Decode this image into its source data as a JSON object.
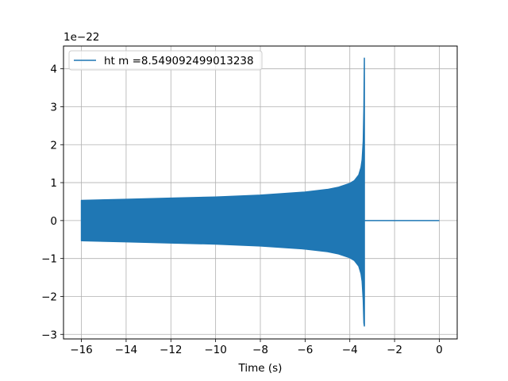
{
  "chart_data": {
    "type": "line",
    "title": "",
    "xlabel": "Time (s)",
    "ylabel": "",
    "y_offset_text": "1e−22",
    "y_scale_factor": 1e-22,
    "xlim": [
      -16.8,
      0.8
    ],
    "ylim": [
      -3.12,
      4.6
    ],
    "x_ticks": [
      -16,
      -14,
      -12,
      -10,
      -8,
      -6,
      -4,
      -2,
      0
    ],
    "x_tick_labels": [
      "−16",
      "−14",
      "−12",
      "−10",
      "−8",
      "−6",
      "−4",
      "−2",
      "0"
    ],
    "y_ticks": [
      -3,
      -2,
      -1,
      0,
      1,
      2,
      3,
      4
    ],
    "y_tick_labels": [
      "−3",
      "−2",
      "−1",
      "0",
      "1",
      "2",
      "3",
      "4"
    ],
    "grid": true,
    "legend_position": "upper-left",
    "series": [
      {
        "name": "ht m =8.549092499013238",
        "color": "#1f77b4",
        "envelope": {
          "x": [
            -16.0,
            -14.0,
            -12.0,
            -10.0,
            -8.0,
            -6.0,
            -5.0,
            -4.5,
            -4.0,
            -3.8,
            -3.6,
            -3.5,
            -3.45,
            -3.4,
            -3.37,
            -3.35
          ],
          "upper": [
            0.53,
            0.56,
            0.59,
            0.62,
            0.67,
            0.75,
            0.82,
            0.88,
            0.98,
            1.05,
            1.2,
            1.4,
            1.6,
            2.1,
            3.0,
            4.28
          ],
          "lower": [
            -0.53,
            -0.56,
            -0.59,
            -0.62,
            -0.67,
            -0.75,
            -0.82,
            -0.88,
            -0.98,
            -1.05,
            -1.2,
            -1.4,
            -1.6,
            -2.1,
            -2.7,
            -2.78
          ]
        },
        "tail": {
          "x": [
            -3.33,
            0.0
          ],
          "y": [
            0.0,
            0.0
          ]
        }
      }
    ]
  }
}
